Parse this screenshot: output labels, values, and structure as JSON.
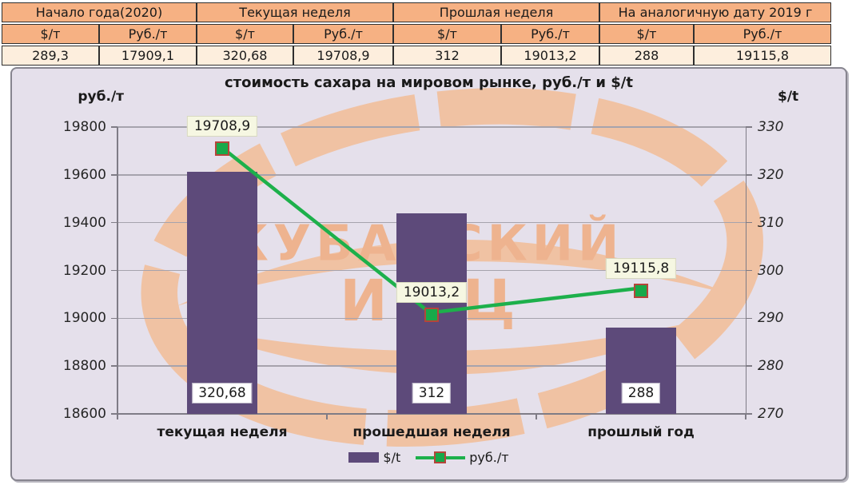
{
  "table": {
    "unit_usd": "$/т",
    "unit_rub": "Руб./т",
    "groups": [
      {
        "label": "Начало года(2020)",
        "usd": "289,3",
        "rub": "17909,1"
      },
      {
        "label": "Текущая неделя",
        "usd": "320,68",
        "rub": "19708,9"
      },
      {
        "label": "Прошлая неделя",
        "usd": "312",
        "rub": "19013,2"
      },
      {
        "label": "На аналогичную дату 2019 г",
        "usd": "288",
        "rub": "19115,8"
      }
    ]
  },
  "chart_data": {
    "type": "bar",
    "title": "стоимость сахара на мировом рынке, руб./т и $/t",
    "categories": [
      "текущая неделя",
      "прошедшая неделя",
      "прошлый год"
    ],
    "series": [
      {
        "name": "$/t",
        "type": "bar",
        "axis": "right",
        "values": [
          320.68,
          312,
          288
        ],
        "labels": [
          "320,68",
          "312",
          "288"
        ]
      },
      {
        "name": "руб./т",
        "type": "line",
        "axis": "left",
        "values": [
          19708.9,
          19013.2,
          19115.8
        ],
        "labels": [
          "19708,9",
          "19013,2",
          "19115,8"
        ]
      }
    ],
    "left_axis": {
      "title": "руб./т",
      "min": 18600,
      "max": 19800,
      "step": 200,
      "ticks": [
        "19800",
        "19600",
        "19400",
        "19200",
        "19000",
        "18800",
        "18600"
      ]
    },
    "right_axis": {
      "title": "$/t",
      "min": 270,
      "max": 330,
      "step": 10,
      "ticks": [
        "330",
        "320",
        "310",
        "300",
        "290",
        "280",
        "270"
      ]
    },
    "legend": [
      {
        "label": "$/t"
      },
      {
        "label": "руб./т"
      }
    ],
    "grid": true,
    "legend_position": "bottom",
    "watermark": {
      "line1": "КУБАНСКИЙ",
      "line2": "ИКЦ"
    }
  },
  "colors": {
    "bar": "#5d4a7a",
    "line": "#1db04b",
    "marker_fill": "#17a94a",
    "marker_border": "#b5453a",
    "panel_bg": "#e5e0eb",
    "grid": "#a6a3ad",
    "axis": "#7f7c86",
    "table_header_bg": "#f6b183",
    "table_value_bg": "#fdeedd",
    "data_label_bg": "#f6f7e2",
    "watermark": "#f3bd97",
    "watermark_text": "#f0ac80"
  }
}
